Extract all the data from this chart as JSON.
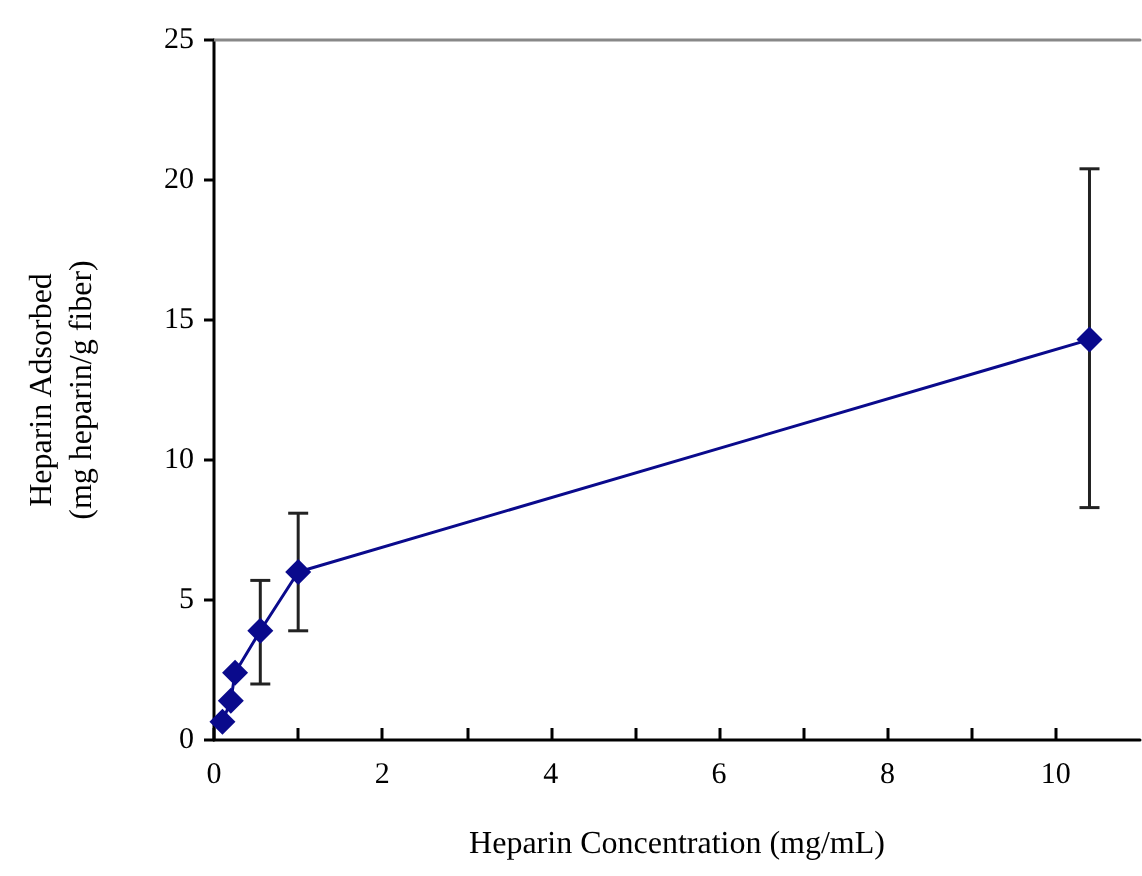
{
  "chart_data": {
    "type": "line",
    "xlabel": "Heparin Concentration (mg/mL)",
    "ylabel": "Heparin Adsorbed\n(mg heparin/g fiber)",
    "x": [
      0.1,
      0.2,
      0.25,
      0.55,
      1.0,
      10.4
    ],
    "series": [
      {
        "color": "#0a0a8c",
        "values": [
          0.65,
          1.4,
          2.4,
          3.9,
          6.0,
          14.3
        ],
        "errors": [
          null,
          null,
          null,
          [
            2.0,
            5.7
          ],
          [
            3.9,
            8.1
          ],
          [
            8.3,
            20.4
          ]
        ]
      }
    ],
    "xlim": [
      0,
      11
    ],
    "xticks": [
      0,
      2,
      4,
      6,
      8,
      10
    ],
    "ylim": [
      0,
      25
    ],
    "yticks": [
      0,
      5,
      10,
      15,
      20,
      25
    ],
    "grid": false,
    "marker": "diamond",
    "line_style": "solid"
  }
}
